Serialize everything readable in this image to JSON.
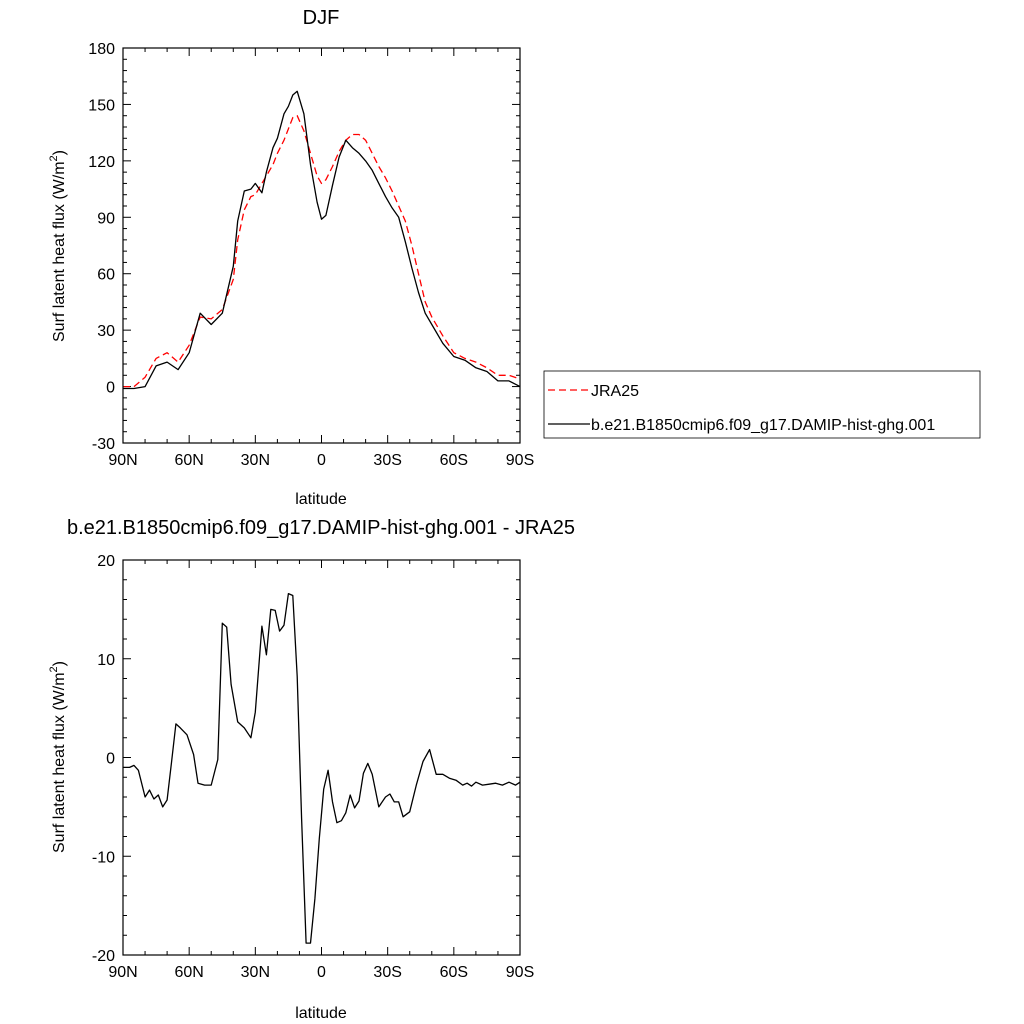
{
  "chart_data": [
    {
      "type": "line",
      "title": "DJF",
      "xlabel": "latitude",
      "ylabel": "Surf latent heat flux (W/m",
      "ylabel_sup": "2",
      "ylabel_close": ")",
      "xlim": [
        90,
        -90
      ],
      "ylim": [
        -30,
        180
      ],
      "x_tick_values": [
        90,
        60,
        30,
        0,
        -30,
        -60,
        -90
      ],
      "x_tick_labels": [
        "90N",
        "60N",
        "30N",
        "0",
        "30S",
        "60S",
        "90S"
      ],
      "y_ticks": [
        -30,
        0,
        30,
        60,
        90,
        120,
        150,
        180
      ],
      "grid": false,
      "legend_position": "right",
      "series": [
        {
          "name": "JRA25",
          "color": "#ff0000",
          "dash": "dashed",
          "x": [
            90,
            85,
            80,
            75,
            70,
            65,
            60,
            55,
            50,
            45,
            40,
            38,
            35,
            32,
            30,
            27,
            25,
            22,
            20,
            17,
            15,
            13,
            11,
            8,
            5,
            2,
            0,
            -2,
            -5,
            -8,
            -11,
            -14,
            -17,
            -20,
            -23,
            -26,
            -29,
            -32,
            -35,
            -38,
            -41,
            -44,
            -47,
            -50,
            -55,
            -60,
            -65,
            -70,
            -75,
            -80,
            -85,
            -90
          ],
          "y": [
            0,
            0,
            5,
            15,
            18,
            13,
            22,
            37,
            36,
            41,
            57,
            78,
            94,
            101,
            102,
            108,
            112,
            118,
            124,
            131,
            137,
            143,
            144,
            136,
            124,
            112,
            108,
            110,
            117,
            125,
            131,
            134,
            134,
            131,
            124,
            117,
            111,
            104,
            96,
            88,
            75,
            60,
            45,
            37,
            27,
            18,
            15,
            13,
            10,
            6,
            6,
            4
          ]
        },
        {
          "name": "b.e21.B1850cmip6.f09_g17.DAMIP-hist-ghg.001",
          "color": "#000000",
          "dash": "solid",
          "x": [
            90,
            85,
            80,
            75,
            70,
            65,
            60,
            55,
            50,
            45,
            40,
            38,
            35,
            32,
            30,
            27,
            25,
            22,
            20,
            17,
            15,
            13,
            11,
            8,
            5,
            2,
            0,
            -2,
            -5,
            -8,
            -11,
            -14,
            -17,
            -20,
            -23,
            -26,
            -29,
            -32,
            -35,
            -38,
            -41,
            -44,
            -47,
            -50,
            -55,
            -60,
            -65,
            -70,
            -75,
            -80,
            -85,
            -90
          ],
          "y": [
            -1,
            -1,
            0,
            11,
            13,
            9,
            18,
            39,
            33,
            39,
            64,
            88,
            104,
            105,
            108,
            103,
            114,
            127,
            132,
            145,
            149,
            155,
            157,
            145,
            118,
            98,
            89,
            91,
            107,
            122,
            131,
            127,
            124,
            120,
            115,
            108,
            101,
            95,
            90,
            77,
            63,
            50,
            39,
            33,
            23,
            16,
            14,
            10,
            8,
            3,
            3,
            0
          ]
        }
      ]
    },
    {
      "type": "line",
      "title": "b.e21.B1850cmip6.f09_g17.DAMIP-hist-ghg.001 - JRA25",
      "xlabel": "latitude",
      "ylabel": "Surf latent heat flux (W/m",
      "ylabel_sup": "2",
      "ylabel_close": ")",
      "xlim": [
        90,
        -90
      ],
      "ylim": [
        -20,
        20
      ],
      "x_tick_values": [
        90,
        60,
        30,
        0,
        -30,
        -60,
        -90
      ],
      "x_tick_labels": [
        "90N",
        "60N",
        "30N",
        "0",
        "30S",
        "60S",
        "90S"
      ],
      "y_ticks": [
        -20,
        -10,
        0,
        10,
        20
      ],
      "grid": false,
      "series": [
        {
          "color": "#000000",
          "dash": "solid",
          "x": [
            90,
            87,
            85,
            83,
            80,
            78,
            76,
            74,
            72,
            70,
            68,
            66,
            64,
            61,
            58,
            56,
            53,
            50,
            47,
            45,
            43,
            41,
            38,
            35,
            32,
            30,
            27,
            25,
            23,
            21,
            19,
            17,
            15,
            13,
            11,
            9,
            7,
            5,
            3,
            1,
            -1,
            -3,
            -5,
            -7,
            -9,
            -11,
            -13,
            -15,
            -17,
            -19,
            -21,
            -23,
            -26,
            -29,
            -31,
            -33,
            -35,
            -37,
            -40,
            -43,
            -46,
            -49,
            -52,
            -55,
            -58,
            -61,
            -64,
            -66,
            -68,
            -70,
            -73,
            -76,
            -79,
            -82,
            -85,
            -88,
            -90
          ],
          "y": [
            -1,
            -1,
            -0.8,
            -1.3,
            -4,
            -3.3,
            -4.2,
            -3.8,
            -5,
            -4.3,
            -0.5,
            3.4,
            3,
            2.3,
            0.3,
            -2.6,
            -2.8,
            -2.8,
            -0.2,
            13.6,
            13.2,
            7.4,
            3.6,
            3,
            2,
            4.6,
            13.3,
            10.4,
            15,
            14.9,
            12.8,
            13.4,
            16.6,
            16.4,
            8.2,
            -6.2,
            -18.8,
            -18.8,
            -14.3,
            -8.2,
            -3.2,
            -1.3,
            -4.5,
            -6.6,
            -6.4,
            -5.6,
            -3.8,
            -5.1,
            -4.4,
            -1.6,
            -0.6,
            -1.7,
            -5,
            -4,
            -3.7,
            -4.5,
            -4.5,
            -6,
            -5.5,
            -2.8,
            -0.4,
            0.8,
            -1.7,
            -1.7,
            -2.1,
            -2.3,
            -2.8,
            -2.6,
            -2.9,
            -2.5,
            -2.8,
            -2.7,
            -2.6,
            -2.8,
            -2.5,
            -2.8,
            -2.5
          ]
        }
      ]
    }
  ]
}
